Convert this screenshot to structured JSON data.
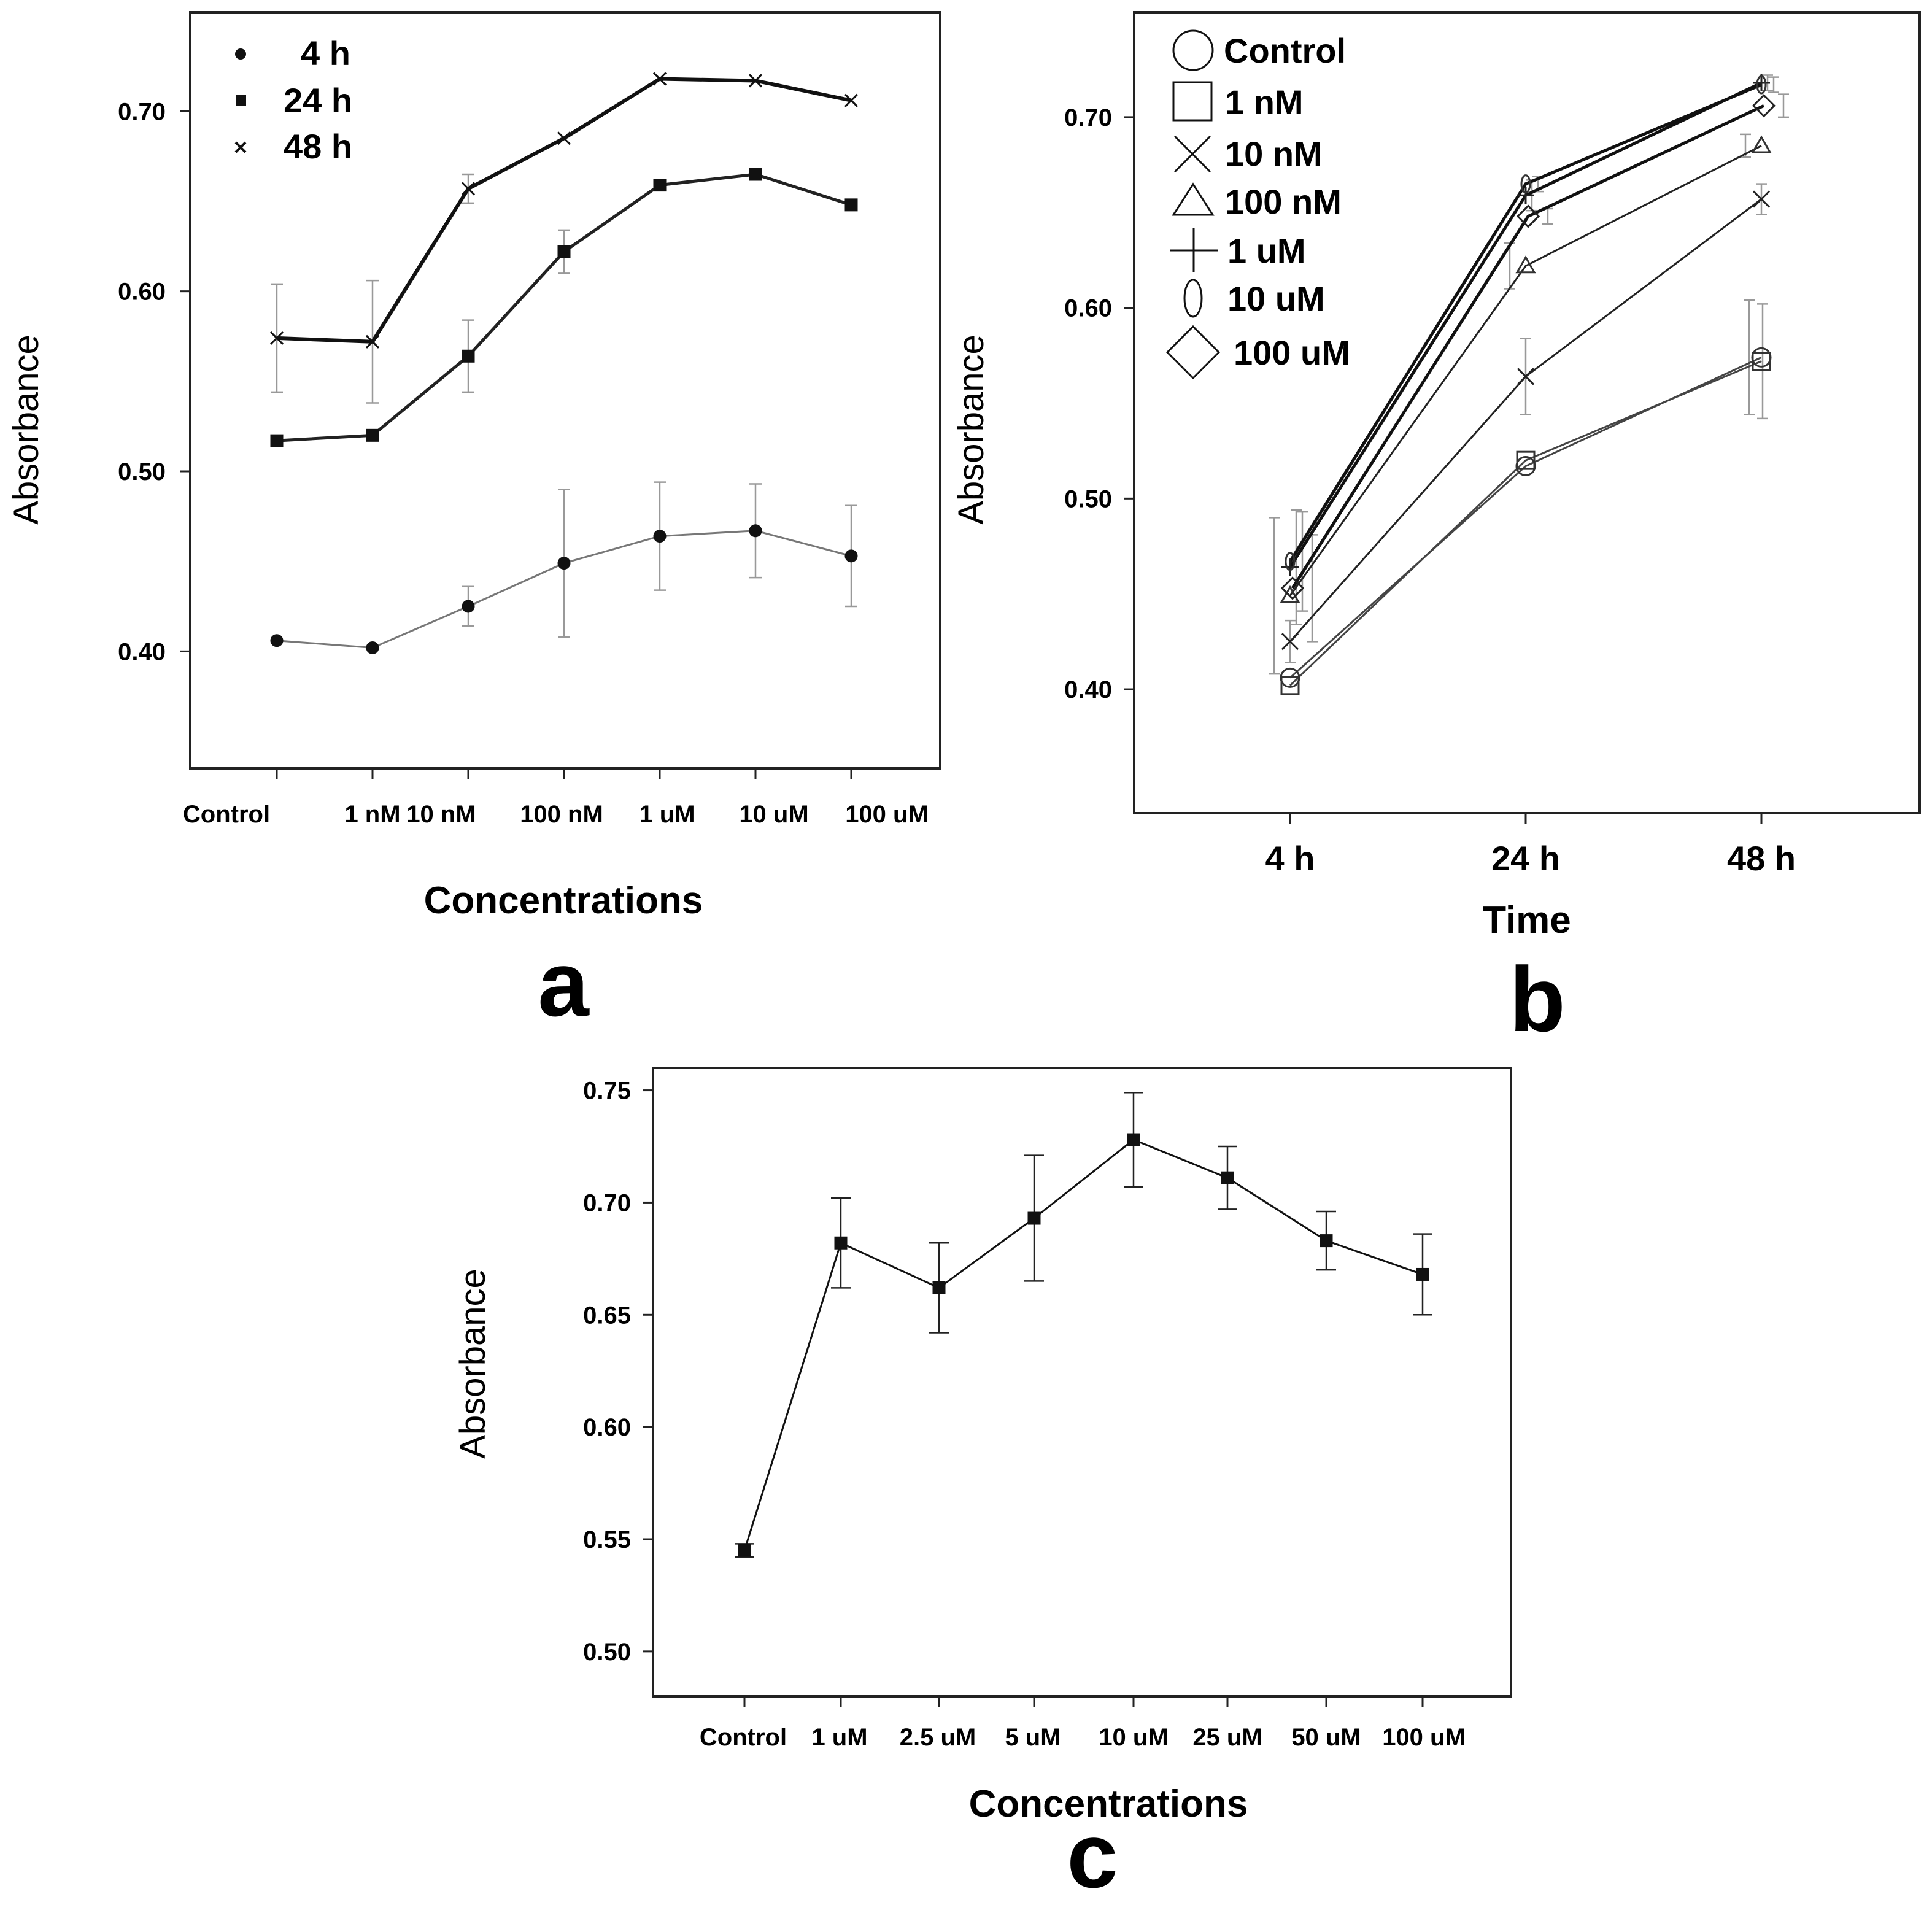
{
  "chart_data": [
    {
      "id": "a",
      "type": "line",
      "panel_label": "a",
      "xlabel": "Concentrations",
      "ylabel": "Absorbance",
      "categories": [
        "Control",
        "1 nM",
        "10 nM",
        "100 nM",
        "1 uM",
        "10 uM",
        "100 uM"
      ],
      "ylim": [
        0.335,
        0.755
      ],
      "yticks": [
        0.4,
        0.5,
        0.6,
        0.7
      ],
      "ytick_labels": [
        "0.40",
        "0.50",
        "0.60",
        "0.70"
      ],
      "legend_position": "top-left",
      "series": [
        {
          "name": "4 h",
          "marker": "circle",
          "color": "#777777",
          "values": [
            0.406,
            0.402,
            0.425,
            0.449,
            0.464,
            0.467,
            0.453
          ],
          "errors": [
            0.0,
            0.0,
            0.011,
            0.041,
            0.03,
            0.026,
            0.028
          ]
        },
        {
          "name": "24 h",
          "marker": "square",
          "color": "#222222",
          "values": [
            0.517,
            0.52,
            0.564,
            0.622,
            0.659,
            0.665,
            0.648
          ],
          "errors": [
            0.0,
            0.0,
            0.02,
            0.012,
            0.0,
            0.0,
            0.0
          ]
        },
        {
          "name": "48 h",
          "marker": "x",
          "color": "#111111",
          "values": [
            0.574,
            0.572,
            0.657,
            0.685,
            0.718,
            0.717,
            0.706
          ],
          "errors": [
            0.03,
            0.034,
            0.008,
            0.0,
            0.0,
            0.0,
            0.0
          ]
        }
      ]
    },
    {
      "id": "b",
      "type": "line",
      "panel_label": "b",
      "xlabel": "Time",
      "ylabel": "Absorbance",
      "categories": [
        "4 h",
        "24 h",
        "48 h"
      ],
      "ylim": [
        0.335,
        0.755
      ],
      "yticks": [
        0.4,
        0.5,
        0.6,
        0.7
      ],
      "ytick_labels": [
        "0.40",
        "0.50",
        "0.60",
        "0.70"
      ],
      "legend_position": "top-left",
      "series": [
        {
          "name": "Control",
          "marker": "circle",
          "values": [
            0.406,
            0.517,
            0.574
          ],
          "errors": [
            0.0,
            0.0,
            0.03
          ]
        },
        {
          "name": "1 nM",
          "marker": "square",
          "values": [
            0.402,
            0.52,
            0.572
          ],
          "errors": [
            0.0,
            0.0,
            0.03
          ]
        },
        {
          "name": "10 nM",
          "marker": "x",
          "values": [
            0.425,
            0.564,
            0.657
          ],
          "errors": [
            0.011,
            0.02,
            0.008
          ]
        },
        {
          "name": "100 nM",
          "marker": "triangle",
          "values": [
            0.449,
            0.622,
            0.685
          ],
          "errors": [
            0.041,
            0.012,
            0.006
          ]
        },
        {
          "name": "1 uM",
          "marker": "plus",
          "values": [
            0.464,
            0.659,
            0.718
          ],
          "errors": [
            0.03,
            0.008,
            0.004
          ]
        },
        {
          "name": "10 uM",
          "marker": "ellipse",
          "values": [
            0.467,
            0.665,
            0.717
          ],
          "errors": [
            0.026,
            0.004,
            0.004
          ]
        },
        {
          "name": "100 uM",
          "marker": "diamond",
          "values": [
            0.453,
            0.648,
            0.706
          ],
          "errors": [
            0.028,
            0.004,
            0.006
          ]
        }
      ]
    },
    {
      "id": "c",
      "type": "line",
      "panel_label": "c",
      "xlabel": "Concentrations",
      "ylabel": "Absorbance",
      "categories": [
        "Control",
        "1 uM",
        "2.5 uM",
        "5 uM",
        "10 uM",
        "25 uM",
        "50 uM",
        "100 uM"
      ],
      "ylim": [
        0.48,
        0.76
      ],
      "yticks": [
        0.5,
        0.55,
        0.6,
        0.65,
        0.7,
        0.75
      ],
      "ytick_labels": [
        "0.50",
        "0.55",
        "0.60",
        "0.65",
        "0.70",
        "0.75"
      ],
      "series": [
        {
          "name": "Absorbance",
          "marker": "square",
          "values": [
            0.545,
            0.682,
            0.662,
            0.693,
            0.728,
            0.711,
            0.683,
            0.668
          ],
          "errors": [
            0.003,
            0.02,
            0.02,
            0.028,
            0.021,
            0.014,
            0.013,
            0.018
          ]
        }
      ]
    }
  ]
}
